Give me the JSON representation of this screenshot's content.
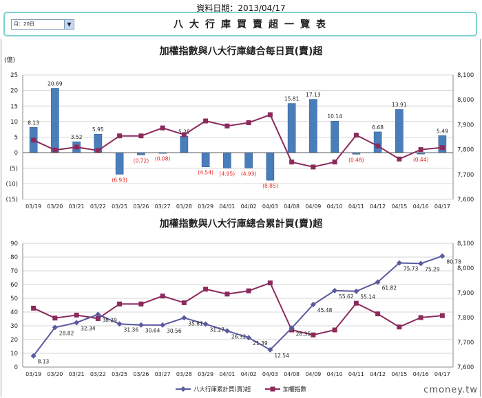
{
  "header": {
    "date_label": "資料日期：",
    "date_value": "2013/04/17",
    "period_selected": "月：20日",
    "title": "八大行庫買賣超一覽表"
  },
  "watermark": "cmoney.tw",
  "chart_data": [
    {
      "type": "bar+line",
      "title": "加權指數與八大行庫總合每日買(賣)超",
      "ylabel": "(億)",
      "categories": [
        "03/19",
        "03/20",
        "03/21",
        "03/22",
        "03/25",
        "03/26",
        "03/27",
        "03/28",
        "03/29",
        "04/01",
        "04/02",
        "04/03",
        "04/08",
        "04/09",
        "04/10",
        "04/11",
        "04/12",
        "04/15",
        "04/16",
        "04/17"
      ],
      "y_ticks": [
        "25",
        "20",
        "15",
        "10",
        "5",
        "0",
        "(5)",
        "(10)",
        "(15)"
      ],
      "ylim": [
        -15,
        25
      ],
      "y2_ticks": [
        "8,100",
        "8,000",
        "7,900",
        "7,800",
        "7,700",
        "7,600"
      ],
      "y2lim": [
        7600,
        8100
      ],
      "grid": true,
      "series": [
        {
          "kind": "bar",
          "values": [
            8.13,
            20.69,
            3.52,
            5.95,
            -6.93,
            -0.72,
            -0.08,
            5.25,
            -4.54,
            -4.95,
            -4.93,
            -8.85,
            15.81,
            17.13,
            10.14,
            -0.48,
            6.68,
            13.91,
            -0.44,
            5.49
          ],
          "labels": [
            "8.13",
            "20.69",
            "3.52",
            "5.95",
            "(6.93)",
            "(0.72)",
            "(0.08)",
            "5.25",
            "(4.54)",
            "(4.95)",
            "(4.93)",
            "(8.85)",
            "15.81",
            "17.13",
            "10.14",
            "(0.48)",
            "6.68",
            "13.91",
            "(0.44)",
            "5.49"
          ],
          "color": "#4a7ebb",
          "negative_label_color": "#e8231e"
        },
        {
          "kind": "line",
          "axis": "right",
          "values": [
            7838,
            7798,
            7810,
            7796,
            7855,
            7855,
            7887,
            7860,
            7915,
            7895,
            7908,
            7940,
            7750,
            7730,
            7750,
            7858,
            7815,
            7762,
            7800,
            7808
          ],
          "color": "#8b2a5b"
        }
      ]
    },
    {
      "type": "line",
      "title": "加權指數與八大行庫總合累計買(賣)超",
      "categories": [
        "03/19",
        "03/20",
        "03/21",
        "03/22",
        "03/25",
        "03/26",
        "03/27",
        "03/28",
        "03/29",
        "04/01",
        "04/02",
        "04/03",
        "04/08",
        "04/09",
        "04/10",
        "04/11",
        "04/12",
        "04/15",
        "04/16",
        "04/17"
      ],
      "y_ticks": [
        "90",
        "80",
        "70",
        "60",
        "50",
        "40",
        "30",
        "20",
        "10",
        "0"
      ],
      "ylim": [
        0,
        90
      ],
      "y2_ticks": [
        "8,100",
        "8,000",
        "7,900",
        "7,800",
        "7,700",
        "7,600"
      ],
      "y2lim": [
        7600,
        8100
      ],
      "grid": true,
      "legend_position": "bottom",
      "series": [
        {
          "name": "八大行庫累計買(賣)超",
          "axis": "left",
          "values": [
            8.13,
            28.82,
            32.34,
            38.29,
            31.36,
            30.64,
            30.56,
            35.81,
            31.27,
            26.32,
            21.39,
            12.54,
            28.35,
            45.48,
            55.62,
            55.14,
            61.82,
            75.73,
            75.29,
            80.78
          ],
          "labels": [
            "8.13",
            "28.82",
            "32.34",
            "38.29",
            "31.36",
            "30.64",
            "30.56",
            "35.81",
            "31.27",
            "26.32",
            "21.39",
            "12.54",
            "28.35",
            "45.48",
            "55.62",
            "55.14",
            "61.82",
            "75.73",
            "75.29",
            "80.78"
          ],
          "color": "#5a5aa0",
          "marker": "diamond"
        },
        {
          "name": "加權指數",
          "axis": "right",
          "values": [
            7838,
            7798,
            7810,
            7796,
            7855,
            7855,
            7887,
            7860,
            7915,
            7895,
            7908,
            7940,
            7750,
            7730,
            7750,
            7858,
            7815,
            7762,
            7800,
            7808
          ],
          "color": "#8b2a5b",
          "marker": "square"
        }
      ]
    }
  ]
}
